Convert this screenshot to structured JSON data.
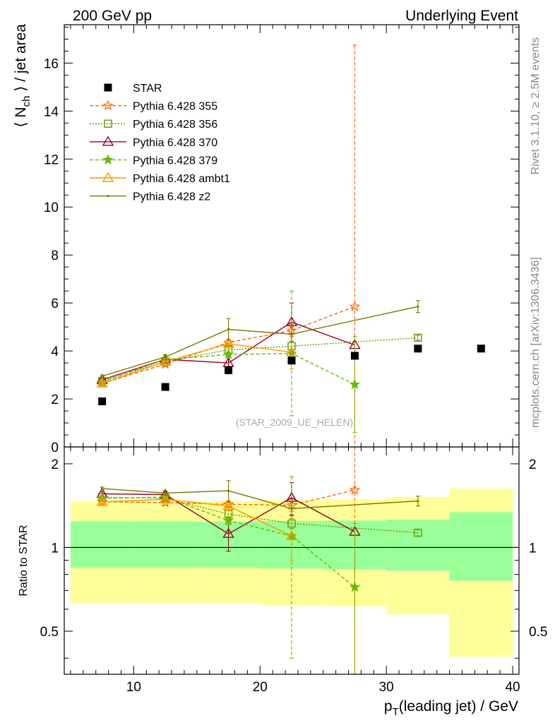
{
  "header": {
    "left": "200 GeV pp",
    "right": "Underlying Event"
  },
  "side_text": {
    "rivet": "Rivet 3.1.10, ≥ 2.5M events",
    "mcplots": "mcplots.cern.ch [arXiv:1306.3436]"
  },
  "watermark": "(STAR_2009_UE_HELEN)",
  "chart_data": [
    {
      "type": "scatter",
      "title": "",
      "xlabel": "p_T(leading jet) / GeV",
      "ylabel": "⟨ N_ch ⟩ / jet area",
      "xlim": [
        4.5,
        40.5
      ],
      "ylim": [
        0,
        17.6
      ],
      "y_ticks": [
        0,
        2,
        4,
        6,
        8,
        10,
        12,
        14,
        16
      ],
      "grid": false,
      "legend_position": "top-left",
      "data_series": {
        "name": "STAR",
        "color": "#000000",
        "marker": "filled-square",
        "x": [
          7.5,
          12.5,
          17.5,
          22.5,
          27.5,
          32.5,
          37.5
        ],
        "y": [
          1.9,
          2.5,
          3.2,
          3.6,
          3.8,
          4.1,
          4.1
        ]
      },
      "series": [
        {
          "name": "Pythia 6.428 355",
          "color": "#ff6600",
          "marker": "star-open",
          "dash": "dashed",
          "x": [
            7.5,
            12.5,
            17.5,
            22.5,
            27.5
          ],
          "y": [
            2.65,
            3.45,
            4.35,
            4.85,
            5.85
          ],
          "yerr": [
            0.05,
            0.1,
            0.15,
            0.25,
            10.9
          ]
        },
        {
          "name": "Pythia 6.428 356",
          "color": "#669900",
          "marker": "square-open",
          "dash": "dotted",
          "x": [
            7.5,
            12.5,
            17.5,
            22.5,
            32.5
          ],
          "y": [
            2.75,
            3.55,
            4.05,
            4.2,
            4.55
          ],
          "yerr": [
            0.05,
            0.1,
            0.15,
            0.2,
            0.1
          ]
        },
        {
          "name": "Pythia 6.428 370",
          "color": "#990022",
          "marker": "triangle-open",
          "dash": "solid",
          "x": [
            7.5,
            12.5,
            17.5,
            22.5,
            27.5
          ],
          "y": [
            2.8,
            3.65,
            3.5,
            5.2,
            4.25
          ],
          "yerr": [
            0.05,
            0.1,
            0.45,
            0.8,
            0.0
          ]
        },
        {
          "name": "Pythia 6.428 379",
          "color": "#66bb00",
          "marker": "star-filled",
          "dash": "dashed",
          "x": [
            7.5,
            12.5,
            17.5,
            22.5,
            27.5
          ],
          "y": [
            2.7,
            3.65,
            3.85,
            3.9,
            2.6
          ],
          "yerr": [
            0.05,
            0.1,
            0.1,
            2.6,
            2.0
          ]
        },
        {
          "name": "Pythia 6.428 ambt1",
          "color": "#ff9900",
          "marker": "triangle-open",
          "dash": "solid",
          "x": [
            7.5,
            12.5,
            17.5,
            22.5
          ],
          "y": [
            2.65,
            3.55,
            4.3,
            3.95
          ],
          "yerr": [
            0.05,
            0.1,
            0.2,
            0.7
          ]
        },
        {
          "name": "Pythia 6.428 z2",
          "color": "#777700",
          "marker": "dot",
          "dash": "solid",
          "x": [
            7.5,
            12.5,
            17.5,
            22.5,
            32.5
          ],
          "y": [
            2.95,
            3.75,
            4.9,
            4.7,
            5.85
          ],
          "yerr": [
            0.05,
            0.1,
            0.45,
            0.3,
            0.25
          ]
        }
      ]
    },
    {
      "type": "scatter",
      "title": "",
      "xlabel": "p_T(leading jet) / GeV",
      "ylabel": "Ratio to STAR",
      "xlim": [
        4.5,
        40.5
      ],
      "ylim": [
        0.35,
        2.3
      ],
      "y_ticks": [
        0.5,
        1,
        2
      ],
      "y_scale": "log",
      "x_ticks": [
        10,
        20,
        30,
        40
      ],
      "reference_line": 1,
      "bands": {
        "edges": [
          5,
          10,
          15,
          20,
          25,
          30,
          35,
          40
        ],
        "yellow_low": [
          0.63,
          0.63,
          0.63,
          0.62,
          0.615,
          0.575,
          0.405
        ],
        "yellow_high": [
          1.47,
          1.47,
          1.47,
          1.48,
          1.49,
          1.52,
          1.63
        ],
        "green_low": [
          0.845,
          0.845,
          0.845,
          0.84,
          0.835,
          0.825,
          0.76
        ],
        "green_high": [
          1.24,
          1.24,
          1.24,
          1.245,
          1.25,
          1.26,
          1.34
        ],
        "yellow_color": "#ffff99",
        "green_color": "#99ff99"
      },
      "series": [
        {
          "name": "Pythia 6.428 355",
          "x": [
            7.5,
            12.5,
            17.5,
            22.5,
            27.5
          ],
          "y": [
            1.46,
            1.45,
            1.43,
            1.42,
            1.61
          ],
          "yerr": [
            0.02,
            0.03,
            0.04,
            0.07,
            3.0
          ]
        },
        {
          "name": "Pythia 6.428 356",
          "x": [
            7.5,
            12.5,
            17.5,
            22.5,
            32.5
          ],
          "y": [
            1.52,
            1.5,
            1.32,
            1.22,
            1.13
          ],
          "yerr": [
            0.02,
            0.03,
            0.04,
            0.05,
            0.03
          ]
        },
        {
          "name": "Pythia 6.428 370",
          "x": [
            7.5,
            12.5,
            17.5,
            22.5,
            27.5
          ],
          "y": [
            1.56,
            1.55,
            1.12,
            1.51,
            1.14
          ],
          "yerr": [
            0.03,
            0.04,
            0.15,
            0.2,
            0.0
          ]
        },
        {
          "name": "Pythia 6.428 379",
          "x": [
            7.5,
            12.5,
            17.5,
            22.5,
            27.5
          ],
          "y": [
            1.5,
            1.52,
            1.25,
            1.1,
            0.72
          ],
          "yerr": [
            0.02,
            0.03,
            0.04,
            0.7,
            0.5
          ]
        },
        {
          "name": "Pythia 6.428 ambt1",
          "x": [
            7.5,
            12.5,
            17.5,
            22.5
          ],
          "y": [
            1.46,
            1.49,
            1.41,
            1.1
          ],
          "yerr": [
            0.02,
            0.03,
            0.05,
            0.2
          ]
        },
        {
          "name": "Pythia 6.428 z2",
          "x": [
            7.5,
            12.5,
            17.5,
            22.5,
            32.5
          ],
          "y": [
            1.63,
            1.57,
            1.6,
            1.38,
            1.47
          ],
          "yerr": [
            0.02,
            0.03,
            0.14,
            0.08,
            0.06
          ]
        }
      ]
    }
  ]
}
